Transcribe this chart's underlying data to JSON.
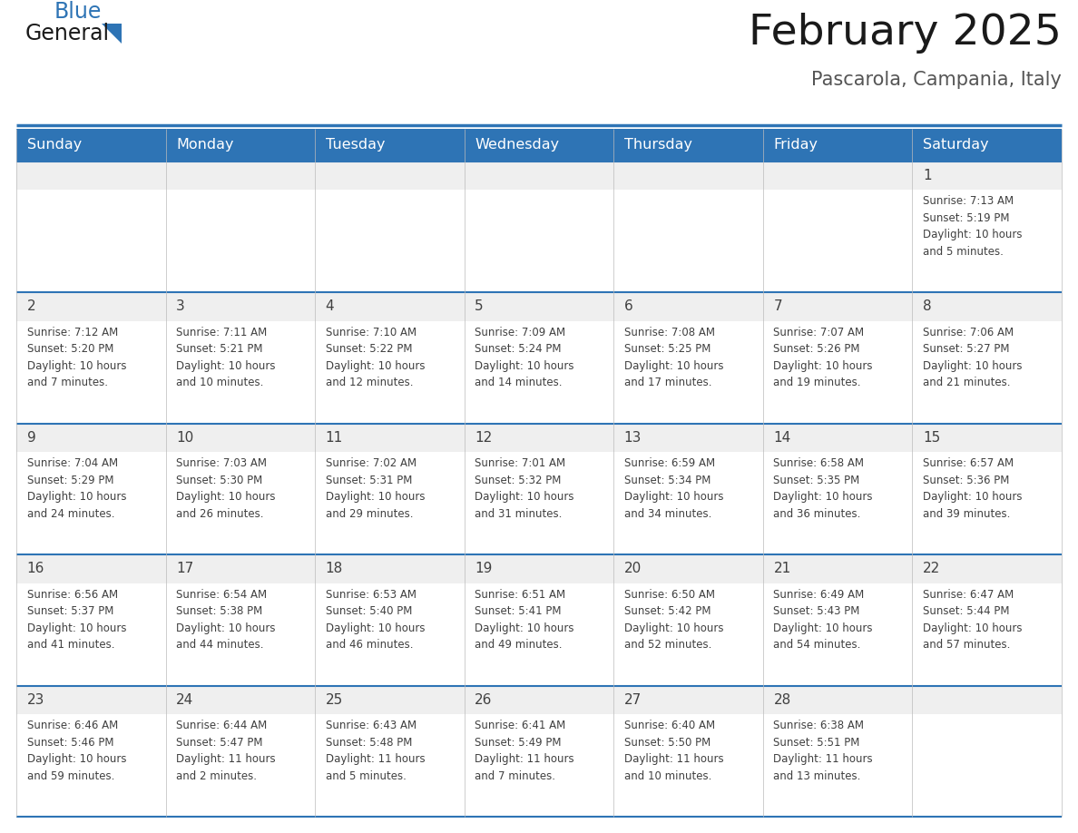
{
  "title": "February 2025",
  "subtitle": "Pascarola, Campania, Italy",
  "days_of_week": [
    "Sunday",
    "Monday",
    "Tuesday",
    "Wednesday",
    "Thursday",
    "Friday",
    "Saturday"
  ],
  "header_bg": "#2E74B5",
  "header_text": "#FFFFFF",
  "cell_bg_white": "#FFFFFF",
  "cell_bg_gray": "#EFEFEF",
  "border_color": "#2E74B5",
  "text_color": "#404040",
  "day_number_color": "#404040",
  "title_color": "#1a1a1a",
  "subtitle_color": "#555555",
  "logo_general_color": "#1a1a1a",
  "logo_blue_color": "#2E74B5",
  "weeks": [
    [
      {
        "day": null,
        "info": null
      },
      {
        "day": null,
        "info": null
      },
      {
        "day": null,
        "info": null
      },
      {
        "day": null,
        "info": null
      },
      {
        "day": null,
        "info": null
      },
      {
        "day": null,
        "info": null
      },
      {
        "day": 1,
        "info": "Sunrise: 7:13 AM\nSunset: 5:19 PM\nDaylight: 10 hours\nand 5 minutes."
      }
    ],
    [
      {
        "day": 2,
        "info": "Sunrise: 7:12 AM\nSunset: 5:20 PM\nDaylight: 10 hours\nand 7 minutes."
      },
      {
        "day": 3,
        "info": "Sunrise: 7:11 AM\nSunset: 5:21 PM\nDaylight: 10 hours\nand 10 minutes."
      },
      {
        "day": 4,
        "info": "Sunrise: 7:10 AM\nSunset: 5:22 PM\nDaylight: 10 hours\nand 12 minutes."
      },
      {
        "day": 5,
        "info": "Sunrise: 7:09 AM\nSunset: 5:24 PM\nDaylight: 10 hours\nand 14 minutes."
      },
      {
        "day": 6,
        "info": "Sunrise: 7:08 AM\nSunset: 5:25 PM\nDaylight: 10 hours\nand 17 minutes."
      },
      {
        "day": 7,
        "info": "Sunrise: 7:07 AM\nSunset: 5:26 PM\nDaylight: 10 hours\nand 19 minutes."
      },
      {
        "day": 8,
        "info": "Sunrise: 7:06 AM\nSunset: 5:27 PM\nDaylight: 10 hours\nand 21 minutes."
      }
    ],
    [
      {
        "day": 9,
        "info": "Sunrise: 7:04 AM\nSunset: 5:29 PM\nDaylight: 10 hours\nand 24 minutes."
      },
      {
        "day": 10,
        "info": "Sunrise: 7:03 AM\nSunset: 5:30 PM\nDaylight: 10 hours\nand 26 minutes."
      },
      {
        "day": 11,
        "info": "Sunrise: 7:02 AM\nSunset: 5:31 PM\nDaylight: 10 hours\nand 29 minutes."
      },
      {
        "day": 12,
        "info": "Sunrise: 7:01 AM\nSunset: 5:32 PM\nDaylight: 10 hours\nand 31 minutes."
      },
      {
        "day": 13,
        "info": "Sunrise: 6:59 AM\nSunset: 5:34 PM\nDaylight: 10 hours\nand 34 minutes."
      },
      {
        "day": 14,
        "info": "Sunrise: 6:58 AM\nSunset: 5:35 PM\nDaylight: 10 hours\nand 36 minutes."
      },
      {
        "day": 15,
        "info": "Sunrise: 6:57 AM\nSunset: 5:36 PM\nDaylight: 10 hours\nand 39 minutes."
      }
    ],
    [
      {
        "day": 16,
        "info": "Sunrise: 6:56 AM\nSunset: 5:37 PM\nDaylight: 10 hours\nand 41 minutes."
      },
      {
        "day": 17,
        "info": "Sunrise: 6:54 AM\nSunset: 5:38 PM\nDaylight: 10 hours\nand 44 minutes."
      },
      {
        "day": 18,
        "info": "Sunrise: 6:53 AM\nSunset: 5:40 PM\nDaylight: 10 hours\nand 46 minutes."
      },
      {
        "day": 19,
        "info": "Sunrise: 6:51 AM\nSunset: 5:41 PM\nDaylight: 10 hours\nand 49 minutes."
      },
      {
        "day": 20,
        "info": "Sunrise: 6:50 AM\nSunset: 5:42 PM\nDaylight: 10 hours\nand 52 minutes."
      },
      {
        "day": 21,
        "info": "Sunrise: 6:49 AM\nSunset: 5:43 PM\nDaylight: 10 hours\nand 54 minutes."
      },
      {
        "day": 22,
        "info": "Sunrise: 6:47 AM\nSunset: 5:44 PM\nDaylight: 10 hours\nand 57 minutes."
      }
    ],
    [
      {
        "day": 23,
        "info": "Sunrise: 6:46 AM\nSunset: 5:46 PM\nDaylight: 10 hours\nand 59 minutes."
      },
      {
        "day": 24,
        "info": "Sunrise: 6:44 AM\nSunset: 5:47 PM\nDaylight: 11 hours\nand 2 minutes."
      },
      {
        "day": 25,
        "info": "Sunrise: 6:43 AM\nSunset: 5:48 PM\nDaylight: 11 hours\nand 5 minutes."
      },
      {
        "day": 26,
        "info": "Sunrise: 6:41 AM\nSunset: 5:49 PM\nDaylight: 11 hours\nand 7 minutes."
      },
      {
        "day": 27,
        "info": "Sunrise: 6:40 AM\nSunset: 5:50 PM\nDaylight: 11 hours\nand 10 minutes."
      },
      {
        "day": 28,
        "info": "Sunrise: 6:38 AM\nSunset: 5:51 PM\nDaylight: 11 hours\nand 13 minutes."
      },
      {
        "day": null,
        "info": null
      }
    ]
  ]
}
